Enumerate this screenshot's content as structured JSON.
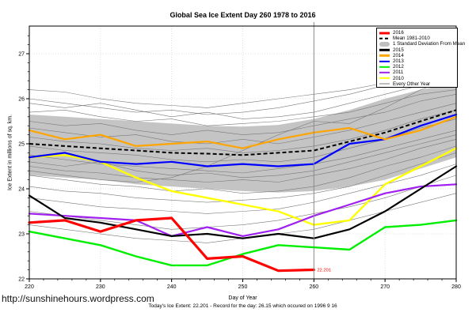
{
  "title": "Global Sea Ice Extent Day 260 1978 to 2016",
  "axes": {
    "x_label": "Day of Year",
    "y_label": "Ice Extent in millions of sq. km.",
    "x_ticks": [
      220,
      230,
      240,
      250,
      260,
      270,
      280
    ],
    "y_ticks": [
      22,
      23,
      24,
      25,
      26,
      27
    ]
  },
  "footer": {
    "url": "http://sunshinehours.wordpress.com",
    "caption": "Today's Ice Extent: 22.201  - Record for the day: 26.15 which occured on 1996 9 16"
  },
  "colors": {
    "red": "#FF0000",
    "black": "#000000",
    "orange": "#FFA500",
    "blue": "#0000FF",
    "green": "#00EE00",
    "purple": "#A020F0",
    "yellow": "#FFFF00",
    "band_gray": "#BFBFBF",
    "thin_gray": "#787878",
    "vline_gray": "#8A8A8A",
    "grid_gray": "#D8D8D8"
  },
  "legend": {
    "items": [
      {
        "label": "2016",
        "sym": "thick",
        "color": "#FF0000"
      },
      {
        "label": "Mean 1981-2010",
        "sym": "dashed",
        "color": "#000000"
      },
      {
        "label": "1 Standard Deviation From Mean",
        "sym": "band",
        "color": "#BFBFBF"
      },
      {
        "label": "2015",
        "sym": "line",
        "color": "#000000"
      },
      {
        "label": "2014",
        "sym": "line",
        "color": "#FFA500"
      },
      {
        "label": "2013",
        "sym": "line",
        "color": "#0000FF"
      },
      {
        "label": "2012",
        "sym": "line",
        "color": "#00EE00"
      },
      {
        "label": "2011",
        "sym": "line",
        "color": "#A020F0"
      },
      {
        "label": "2010",
        "sym": "line",
        "color": "#FFFF00"
      },
      {
        "label": "Every Other Year",
        "sym": "thin",
        "color": "#787878"
      }
    ]
  },
  "chart_data": {
    "type": "line",
    "title": "Global Sea Ice Extent Day 260 1978 to 2016",
    "xlabel": "Day of Year",
    "ylabel": "Ice Extent in millions of sq. km.",
    "xlim": [
      220,
      280
    ],
    "ylim": [
      22,
      27.6
    ],
    "grid": true,
    "legend_position": "top-right",
    "x": [
      220,
      225,
      230,
      235,
      240,
      245,
      250,
      255,
      260,
      265,
      270,
      275,
      280
    ],
    "vline_x": 260,
    "annotation": {
      "text": "22.201",
      "x": 260,
      "y": 22.201,
      "color": "#FF0000"
    },
    "band": {
      "name": "1 Standard Deviation From Mean",
      "upper": [
        25.65,
        25.6,
        25.55,
        25.5,
        25.45,
        25.4,
        25.38,
        25.42,
        25.55,
        25.75,
        26.0,
        26.2,
        26.35
      ],
      "lower": [
        24.3,
        24.25,
        24.2,
        24.1,
        24.05,
        24.0,
        23.95,
        23.92,
        23.95,
        24.05,
        24.2,
        24.45,
        24.7
      ]
    },
    "mean": {
      "name": "Mean 1981-2010",
      "values": [
        25.0,
        24.95,
        24.9,
        24.85,
        24.8,
        24.78,
        24.75,
        24.8,
        24.85,
        25.05,
        25.25,
        25.5,
        25.75
      ]
    },
    "series": [
      {
        "name": "2010",
        "color": "#FFFF00",
        "width": 2.4,
        "values": [
          24.7,
          24.75,
          24.6,
          24.25,
          23.95,
          23.8,
          23.65,
          23.5,
          23.2,
          23.3,
          24.1,
          24.5,
          24.9
        ]
      },
      {
        "name": "2011",
        "color": "#A020F0",
        "width": 2.2,
        "values": [
          23.45,
          23.4,
          23.35,
          23.3,
          22.95,
          23.15,
          22.95,
          23.1,
          23.4,
          23.65,
          23.9,
          24.05,
          24.1
        ]
      },
      {
        "name": "2012",
        "color": "#00EE00",
        "width": 2.4,
        "values": [
          23.05,
          22.9,
          22.75,
          22.5,
          22.3,
          22.3,
          22.55,
          22.75,
          22.7,
          22.65,
          23.15,
          23.2,
          23.3
        ]
      },
      {
        "name": "2013",
        "color": "#0000FF",
        "width": 2.2,
        "values": [
          24.7,
          24.8,
          24.6,
          24.55,
          24.6,
          24.5,
          24.55,
          24.5,
          24.55,
          25.0,
          25.1,
          25.4,
          25.65
        ]
      },
      {
        "name": "2014",
        "color": "#FFA500",
        "width": 2.2,
        "values": [
          25.3,
          25.1,
          25.2,
          24.95,
          25.0,
          25.05,
          24.9,
          25.1,
          25.25,
          25.35,
          25.1,
          25.3,
          25.6
        ]
      },
      {
        "name": "2015",
        "color": "#000000",
        "width": 2.2,
        "values": [
          23.85,
          23.35,
          23.25,
          23.1,
          22.95,
          23.0,
          22.9,
          23.0,
          22.9,
          23.1,
          23.5,
          24.0,
          24.5
        ]
      },
      {
        "name": "2016",
        "color": "#FF0000",
        "width": 3.2,
        "values": [
          23.25,
          23.3,
          23.05,
          23.3,
          23.35,
          22.45,
          22.5,
          22.18,
          22.201
        ]
      }
    ],
    "background_years": [
      [
        26.2,
        26.15,
        26.0,
        25.9,
        25.85,
        25.8,
        25.9,
        26.0,
        26.1,
        26.2,
        26.35,
        26.5,
        26.6
      ],
      [
        26.0,
        25.9,
        25.8,
        25.7,
        25.75,
        25.65,
        25.7,
        25.8,
        25.95,
        26.1,
        26.3,
        26.55,
        26.75
      ],
      [
        25.9,
        25.8,
        25.9,
        25.75,
        25.6,
        25.7,
        25.55,
        25.6,
        25.7,
        25.9,
        26.1,
        26.3,
        26.45
      ],
      [
        25.7,
        25.75,
        25.6,
        25.5,
        25.55,
        25.4,
        25.45,
        25.5,
        25.6,
        25.7,
        25.9,
        26.1,
        26.2
      ],
      [
        25.5,
        25.4,
        25.45,
        25.3,
        25.2,
        25.3,
        25.2,
        25.25,
        25.4,
        25.55,
        25.7,
        25.95,
        26.1
      ],
      [
        25.35,
        25.25,
        25.15,
        25.2,
        25.05,
        25.0,
        25.1,
        25.0,
        25.15,
        25.3,
        25.5,
        25.7,
        25.9
      ],
      [
        25.15,
        25.05,
        25.0,
        24.9,
        24.85,
        24.9,
        24.8,
        24.85,
        24.95,
        25.1,
        25.3,
        25.55,
        25.75
      ],
      [
        24.95,
        24.85,
        24.8,
        24.75,
        24.65,
        24.6,
        24.65,
        24.6,
        24.7,
        24.9,
        25.1,
        25.35,
        25.55
      ],
      [
        24.75,
        24.65,
        24.55,
        24.5,
        24.45,
        24.4,
        24.35,
        24.45,
        24.55,
        24.7,
        24.9,
        25.1,
        25.3
      ],
      [
        24.6,
        24.5,
        24.6,
        24.4,
        24.3,
        24.35,
        24.25,
        24.3,
        24.4,
        24.6,
        24.8,
        25.0,
        25.2
      ],
      [
        24.5,
        24.4,
        24.35,
        24.25,
        24.2,
        24.15,
        24.2,
        24.15,
        24.3,
        24.45,
        24.65,
        24.9,
        25.1
      ],
      [
        24.4,
        24.3,
        24.2,
        24.15,
        24.25,
        24.5,
        24.85,
        25.2,
        25.5,
        25.45,
        25.8,
        26.2,
        26.5
      ],
      [
        24.3,
        24.2,
        24.1,
        24.05,
        23.95,
        24.0,
        23.9,
        23.95,
        24.05,
        24.25,
        24.5,
        24.7,
        24.95
      ],
      [
        24.05,
        23.95,
        23.9,
        23.8,
        23.75,
        23.7,
        23.75,
        23.8,
        23.9,
        24.05,
        24.3,
        24.55,
        24.8
      ],
      [
        23.8,
        23.7,
        23.6,
        23.55,
        23.5,
        23.45,
        23.5,
        23.55,
        23.7,
        23.9,
        24.1,
        24.3,
        24.55
      ],
      [
        23.5,
        23.4,
        23.3,
        23.2,
        23.1,
        23.15,
        23.2,
        23.3,
        23.45,
        23.6,
        23.8,
        24.05,
        24.3
      ],
      [
        23.2,
        23.1,
        23.0,
        22.9,
        22.85,
        22.8,
        22.9,
        23.0,
        23.1,
        23.3,
        23.5,
        23.7,
        23.9
      ]
    ]
  }
}
